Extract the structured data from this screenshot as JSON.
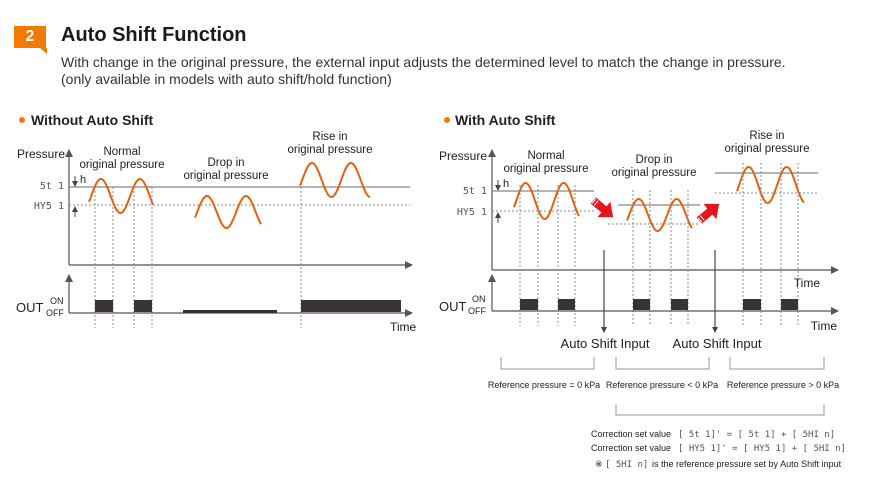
{
  "header": {
    "badge_number": "2",
    "title": "Auto Shift Function",
    "description_line1": "With change in the original pressure, the external input adjusts the determined level to match the change in pressure.",
    "description_line2": "(only available in models with auto shift/hold function)"
  },
  "colors": {
    "accent": "#f27a00",
    "wave": "#e8600c",
    "arrow": "#e8141b",
    "pulse": "#3a3333",
    "axis": "#555555"
  },
  "left_panel": {
    "heading": "Without Auto Shift",
    "y_axis_label": "Pressure",
    "set_label": "5t 1",
    "hys_label": "HY5 1",
    "h_label": "h",
    "normal_label_1": "Normal",
    "normal_label_2": "original pressure",
    "drop_label_1": "Drop in",
    "drop_label_2": "original pressure",
    "rise_label_1": "Rise in",
    "rise_label_2": "original pressure",
    "out_label": "OUT",
    "on_label": "ON",
    "off_label": "OFF",
    "time_label": "Time"
  },
  "right_panel": {
    "heading": "With Auto Shift",
    "y_axis_label": "Pressure",
    "set_label": "5t 1",
    "hys_label": "HY5 1",
    "h_label": "h",
    "normal_label_1": "Normal",
    "normal_label_2": "original pressure",
    "drop_label_1": "Drop in",
    "drop_label_2": "original pressure",
    "rise_label_1": "Rise in",
    "rise_label_2": "original pressure",
    "out_label": "OUT",
    "on_label": "ON",
    "off_label": "OFF",
    "time_label_top": "Time",
    "time_label_bottom": "Time",
    "auto_shift_input_1": "Auto Shift Input",
    "auto_shift_input_2": "Auto Shift Input",
    "ref_eq": "Reference pressure = 0 kPa",
    "ref_lt": "Reference pressure < 0 kPa",
    "ref_gt": "Reference pressure > 0 kPa"
  },
  "formulas": {
    "line1_prefix": "Correction set value",
    "line1_formula": "[ 5t 1]'  =  [ 5t 1]  +  [ 5HI n]",
    "line2_prefix": "Correction set value",
    "line2_formula": "[ HY5 1]'  =  [ HY5 1]  +  [ 5HI n]",
    "note_mark": "※",
    "note_code": "[ 5HI n]",
    "note_text": "is the reference pressure set by Auto Shift input"
  }
}
